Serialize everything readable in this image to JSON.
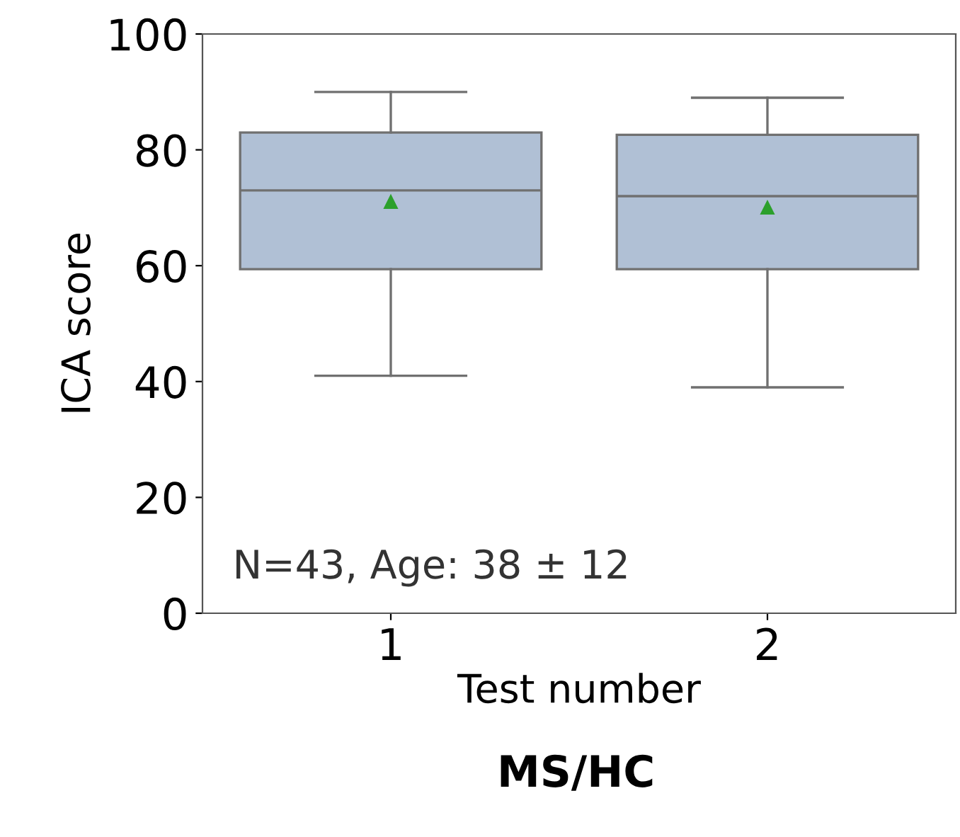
{
  "chart_data": {
    "type": "box",
    "title": "MS/HC",
    "xlabel": "Test number",
    "ylabel": "ICA score",
    "categories": [
      "1",
      "2"
    ],
    "color": "#b0c0d5",
    "boxes": [
      {
        "low": 41,
        "q1": 59.4,
        "median": 73,
        "q3": 83,
        "high": 90,
        "mean": 71
      },
      {
        "low": 39,
        "q1": 59.4,
        "median": 72,
        "q3": 82.6,
        "high": 89,
        "mean": 70
      }
    ],
    "ylim": [
      0,
      100
    ],
    "yticks": [
      0,
      20,
      40,
      60,
      80,
      100
    ],
    "grid": false,
    "annotations": [
      "N=43, Age: 38 ± 12"
    ]
  }
}
